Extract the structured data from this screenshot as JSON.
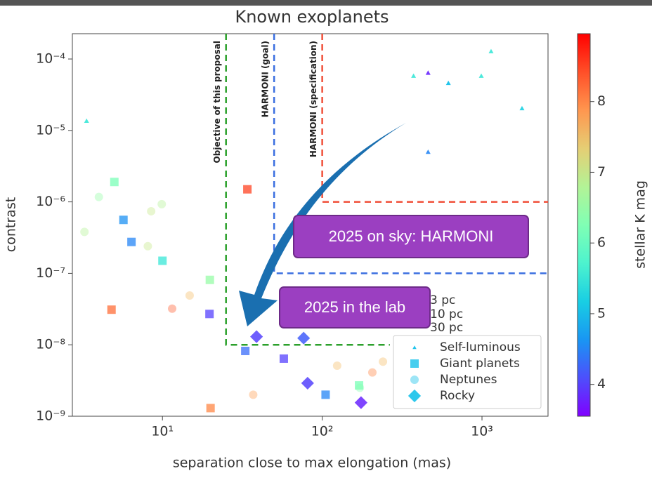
{
  "chart_data": {
    "type": "scatter",
    "title": "Known exoplanets",
    "xlabel": "separation close to max elongation (mas)",
    "ylabel": "contrast",
    "xlog": true,
    "ylog": true,
    "xlim": [
      2.73,
      2590
    ],
    "ylim": [
      1e-09,
      0.000226
    ],
    "xticks": [
      {
        "value": 10,
        "label": "10¹"
      },
      {
        "value": 100,
        "label": "10²"
      },
      {
        "value": 1000,
        "label": "10³"
      }
    ],
    "yticks": [
      {
        "value": 1e-09,
        "label": "10⁻⁹"
      },
      {
        "value": 1e-08,
        "label": "10⁻⁸"
      },
      {
        "value": 1e-07,
        "label": "10⁻⁷"
      },
      {
        "value": 1e-06,
        "label": "10⁻⁶"
      },
      {
        "value": 1e-05,
        "label": "10⁻⁵"
      },
      {
        "value": 0.0001,
        "label": "10⁻⁴"
      }
    ],
    "colorbar": {
      "label": "stellar K mag",
      "colormap": "rainbow",
      "clim": [
        3.55,
        8.96
      ],
      "ticks": [
        4,
        5,
        6,
        7,
        8
      ]
    },
    "series": [
      {
        "name": "Self-luminous",
        "marker": "triangle",
        "alpha": 0.9,
        "x": [
          460,
          373,
          1140,
          616,
          990,
          1780,
          460,
          3.35
        ],
        "values": [
          6.4e-05,
          5.8e-05,
          0.000128,
          4.6e-05,
          5.8e-05,
          2.04e-05,
          5e-06,
          1.36e-05
        ],
        "kmag": [
          3.8,
          5.5,
          5.5,
          5,
          5.5,
          5.2,
          4.5,
          5.5
        ]
      },
      {
        "name": "Giant planets",
        "marker": "square",
        "alpha": 0.75,
        "x": [
          5.7,
          6.4,
          19.7,
          33,
          57.5,
          105,
          5,
          10,
          19.8,
          170,
          4.8,
          34,
          20
        ],
        "values": [
          5.6e-07,
          2.75e-07,
          2.7e-08,
          8.2e-09,
          6.4e-09,
          2e-09,
          1.9e-06,
          1.5e-07,
          8.1e-08,
          2.7e-09,
          3.1e-08,
          1.5e-06,
          1.3e-09
        ],
        "kmag": [
          4.6,
          4.5,
          4,
          4.3,
          4,
          4.5,
          6.2,
          5.5,
          6.5,
          6.2,
          8.2,
          8.5,
          8
        ]
      },
      {
        "name": "Neptunes",
        "marker": "circle",
        "alpha": 0.4,
        "x": [
          4,
          8.1,
          14.8,
          67.6,
          124,
          206,
          37,
          11.5,
          3.25,
          8.5,
          9.9,
          172,
          240
        ],
        "values": [
          1.17e-06,
          2.4e-07,
          4.9e-08,
          2e-08,
          5.1e-09,
          4.1e-09,
          2e-09,
          3.2e-08,
          3.8e-07,
          7.4e-07,
          9.3e-07,
          2.5e-09,
          5.8e-09
        ],
        "kmag": [
          6.5,
          7,
          7.5,
          7.8,
          7.5,
          8,
          7.8,
          8.3,
          6.8,
          7,
          6.8,
          6.3,
          7.5
        ]
      },
      {
        "name": "Rocky",
        "marker": "diamond",
        "alpha": 0.85,
        "x": [
          38.8,
          81,
          175,
          76.5
        ],
        "values": [
          1.3e-08,
          2.9e-09,
          1.55e-09,
          1.24e-08
        ],
        "kmag": [
          4,
          4,
          3.8,
          4.2
        ]
      }
    ],
    "limits": [
      {
        "name": "Objective of this proposal",
        "x": 25,
        "y": 1e-08,
        "x_end": 265,
        "color": "#2ca02c"
      },
      {
        "name": "HARMONI (goal)",
        "x": 50,
        "y": 1e-07,
        "x_end": 2590,
        "color": "#3b6fe0"
      },
      {
        "name": "HARMONI (specification)",
        "x": 100,
        "y": 1e-06,
        "x_end": 2590,
        "color": "#f0503a"
      }
    ],
    "distance_legend": [
      "3 pc",
      "10 pc",
      "30 pc"
    ],
    "callouts": [
      "2025 on sky: HARMONI",
      "2025 in the lab"
    ]
  }
}
